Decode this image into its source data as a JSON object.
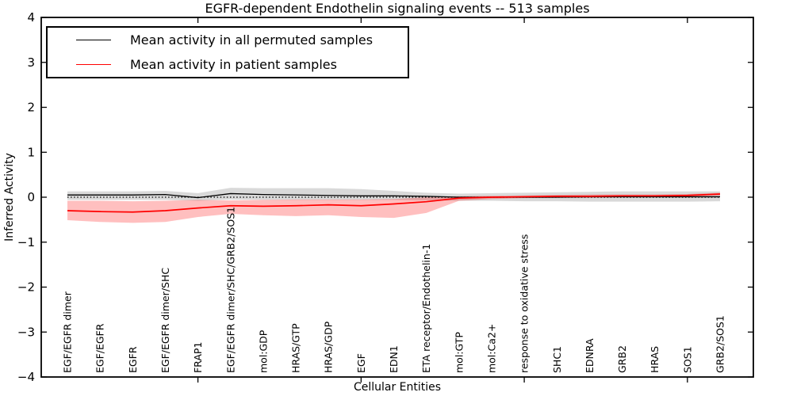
{
  "chart_data": {
    "type": "line",
    "title": "EGFR-dependent Endothelin signaling events -- 513 samples",
    "xlabel": "Cellular Entities",
    "ylabel": "Inferred Activity",
    "ylim": [
      -4,
      4
    ],
    "ytick_values": [
      -4,
      -3,
      -2,
      -1,
      0,
      1,
      2,
      3,
      4
    ],
    "ytick_labels": [
      "−4",
      "−3",
      "−2",
      "−1",
      "0",
      "1",
      "2",
      "3",
      "4"
    ],
    "x_major_ticks": [
      5,
      10,
      15,
      20
    ],
    "grid": false,
    "zero_line": true,
    "legend_position": "upper left",
    "categories": [
      "EGF/EGFR dimer",
      "EGF/EGFR",
      "EGFR",
      "EGF/EGFR dimer/SHC",
      "FRAP1",
      "EGF/EGFR dimer/SHC/GRB2/SOS1",
      "mol:GDP",
      "HRAS/GTP",
      "HRAS/GDP",
      "EGF",
      "EDN1",
      "ETA receptor/Endothelin-1",
      "mol:GTP",
      "mol:Ca2+",
      "response to oxidative stress",
      "SHC1",
      "EDNRA",
      "GRB2",
      "HRAS",
      "SOS1",
      "GRB2/SOS1"
    ],
    "series": [
      {
        "key": "permuted",
        "name": "Mean activity in all permuted samples",
        "color": "#000000",
        "line_width": 1.3,
        "band_color": "rgba(0,0,0,0.15)",
        "values": [
          0.05,
          0.05,
          0.05,
          0.06,
          -0.01,
          0.08,
          0.06,
          0.05,
          0.04,
          0.03,
          0.03,
          0.02,
          0.0,
          0.0,
          0.0,
          0.0,
          0.01,
          0.01,
          0.01,
          0.01,
          0.01
        ],
        "band_hi": [
          0.13,
          0.13,
          0.13,
          0.14,
          0.09,
          0.21,
          0.2,
          0.2,
          0.2,
          0.18,
          0.14,
          0.1,
          0.08,
          0.09,
          0.1,
          0.11,
          0.12,
          0.13,
          0.13,
          0.13,
          0.13
        ],
        "band_lo": [
          -0.06,
          -0.06,
          -0.06,
          -0.06,
          -0.08,
          -0.05,
          -0.06,
          -0.06,
          -0.06,
          -0.06,
          -0.06,
          -0.07,
          -0.08,
          -0.08,
          -0.09,
          -0.09,
          -0.1,
          -0.1,
          -0.1,
          -0.1,
          -0.09
        ]
      },
      {
        "key": "patient",
        "name": "Mean activity in patient samples",
        "color": "#ff0000",
        "line_width": 1.7,
        "band_color": "rgba(255,0,0,0.25)",
        "values": [
          -0.3,
          -0.32,
          -0.33,
          -0.3,
          -0.24,
          -0.19,
          -0.2,
          -0.19,
          -0.17,
          -0.19,
          -0.15,
          -0.1,
          -0.02,
          0.0,
          0.01,
          0.02,
          0.02,
          0.03,
          0.03,
          0.04,
          0.07
        ],
        "band_hi": [
          -0.08,
          -0.08,
          -0.09,
          -0.08,
          -0.06,
          -0.07,
          -0.06,
          -0.05,
          -0.05,
          -0.05,
          -0.04,
          0.0,
          0.02,
          0.03,
          0.04,
          0.05,
          0.06,
          0.06,
          0.06,
          0.07,
          0.1
        ],
        "band_lo": [
          -0.51,
          -0.55,
          -0.57,
          -0.55,
          -0.44,
          -0.37,
          -0.4,
          -0.42,
          -0.4,
          -0.44,
          -0.46,
          -0.35,
          -0.08,
          -0.04,
          -0.02,
          -0.01,
          -0.01,
          0.0,
          0.0,
          0.01,
          0.04
        ]
      }
    ]
  }
}
